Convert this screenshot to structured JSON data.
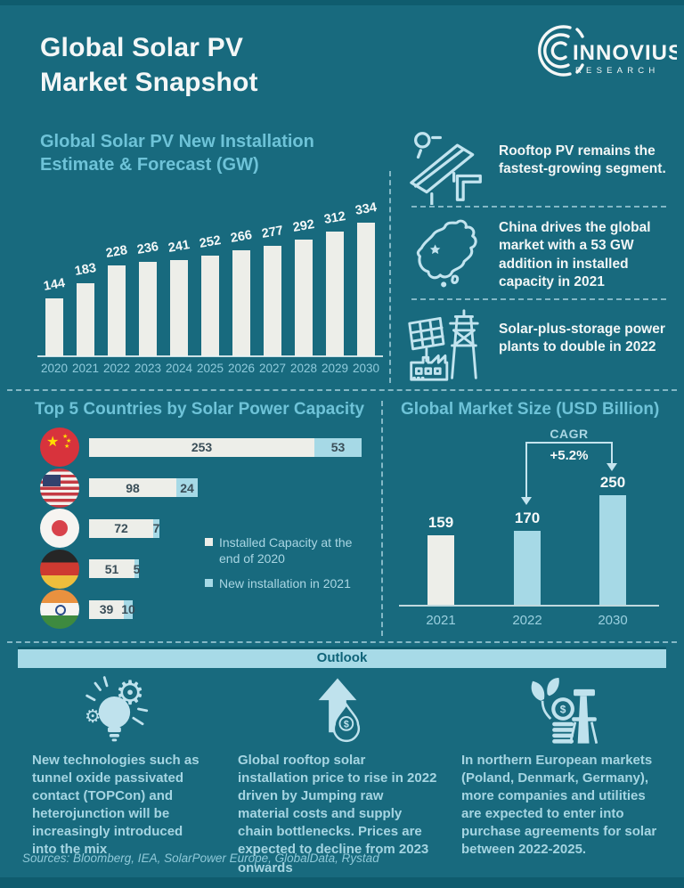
{
  "colors": {
    "background": "#186A7E",
    "dark_strip": "#0F5C6E",
    "heading": "#6EC3D8",
    "white_bar": "#EDEEE9",
    "light_blue": "#A6D9E6",
    "banner_bg": "#A7DAE7",
    "banner_text": "#0F6378",
    "bar_number": "#3A4E58",
    "body_text": "#A5D5E2"
  },
  "header": {
    "title_line1": "Global Solar PV",
    "title_line2": "Market Snapshot",
    "logo_name": "INNOVIUS",
    "logo_sub": "RESEARCH"
  },
  "install_section": {
    "title_line1": "Global Solar PV New Installation",
    "title_line2": "Estimate & Forecast (GW)"
  },
  "sidebar": {
    "items": [
      {
        "icon": "rooftop-pv-icon",
        "text": "Rooftop PV remains the fastest-growing segment."
      },
      {
        "icon": "china-map-icon",
        "text": "China drives the global market with a 53 GW addition in installed capacity in 2021"
      },
      {
        "icon": "solar-storage-icon",
        "text": "Solar-plus-storage power plants to double in 2022"
      }
    ]
  },
  "top5_section": {
    "title": "Top 5 Countries by Solar Power Capacity",
    "legend": [
      {
        "label": "Installed Capacity at the end of 2020",
        "swatch": "#EDEEE9"
      },
      {
        "label": "New installation in 2021",
        "swatch": "#A6D9E6"
      }
    ]
  },
  "market_section": {
    "title": "Global Market Size (USD Billion)",
    "cagr_label": "CAGR",
    "cagr_value": "+5.2%"
  },
  "outlook": {
    "banner": "Outlook",
    "items": [
      {
        "icon": "innovation-bulb-gear-icon",
        "text": "New technologies such as tunnel oxide passivated contact (TOPCon) and heterojunction will be increasingly introduced into the mix"
      },
      {
        "icon": "price-rise-arrow-drop-icon",
        "text": "Global rooftop solar installation price to rise in 2022 driven by Jumping raw material costs and supply chain bottlenecks. Prices are expected to decline from 2023 onwards"
      },
      {
        "icon": "investment-coins-turbine-icon",
        "text": "In northern European markets (Poland, Denmark, Germany), more companies and utilities are expected to enter into purchase agreements for solar between 2022-2025."
      }
    ]
  },
  "footer": {
    "sources": "Sources: Bloomberg, IEA, SolarPower Europe, GlobalData, Rystad"
  },
  "chart_data": [
    {
      "type": "bar",
      "title": "Global Solar PV New Installation Estimate & Forecast (GW)",
      "categories": [
        "2020",
        "2021",
        "2022",
        "2023",
        "2024",
        "2025",
        "2026",
        "2027",
        "2028",
        "2029",
        "2030"
      ],
      "values": [
        144,
        183,
        228,
        236,
        241,
        252,
        266,
        277,
        292,
        312,
        334
      ],
      "ylabel": "GW",
      "bar_color": "#EDEEE9",
      "grid": false,
      "value_labels": "above bars, slightly rotated"
    },
    {
      "type": "bar",
      "orientation": "horizontal",
      "title": "Top 5 Countries by Solar Power Capacity",
      "categories": [
        "China",
        "USA",
        "Japan",
        "Germany",
        "India"
      ],
      "series": [
        {
          "name": "Installed Capacity at the end of 2020",
          "values": [
            253,
            98,
            72,
            51,
            39
          ],
          "color": "#EDEEE9"
        },
        {
          "name": "New installation in 2021",
          "values": [
            53,
            24,
            7,
            5,
            10
          ],
          "color": "#A6D9E6"
        }
      ],
      "unit": "GW",
      "legend_position": "right"
    },
    {
      "type": "bar",
      "title": "Global Market Size (USD Billion)",
      "categories": [
        "2021",
        "2022",
        "2030"
      ],
      "values": [
        159,
        170,
        250
      ],
      "bar_colors": [
        "#EDEEE9",
        "#A6D9E6",
        "#A6D9E6"
      ],
      "annotation": "CAGR +5.2%"
    }
  ]
}
